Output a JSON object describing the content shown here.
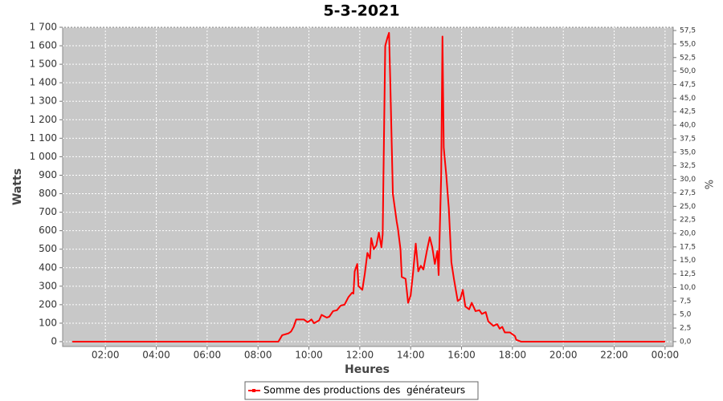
{
  "chart_data": {
    "type": "line",
    "title": "5-3-2021",
    "x_label": "Heures",
    "y_label": "Watts",
    "y2_label": "%",
    "xlim": [
      0.32,
      24.32
    ],
    "xticks": [
      {
        "value": 2,
        "label": "02:00"
      },
      {
        "value": 4,
        "label": "04:00"
      },
      {
        "value": 6,
        "label": "06:00"
      },
      {
        "value": 8,
        "label": "08:00"
      },
      {
        "value": 10,
        "label": "10:00"
      },
      {
        "value": 12,
        "label": "12:00"
      },
      {
        "value": 14,
        "label": "14:00"
      },
      {
        "value": 16,
        "label": "16:00"
      },
      {
        "value": 18,
        "label": "18:00"
      },
      {
        "value": 20,
        "label": "20:00"
      },
      {
        "value": 22,
        "label": "22:00"
      },
      {
        "value": 24,
        "label": "00:00"
      }
    ],
    "ylim": [
      -26,
      1700
    ],
    "yticks": [
      0,
      100,
      200,
      300,
      400,
      500,
      600,
      700,
      800,
      900,
      {
        "value": 1000,
        "label": "1 000"
      },
      {
        "value": 1100,
        "label": "1 100"
      },
      {
        "value": 1200,
        "label": "1 200"
      },
      {
        "value": 1300,
        "label": "1 300"
      },
      {
        "value": 1400,
        "label": "1 400"
      },
      {
        "value": 1500,
        "label": "1 500"
      },
      {
        "value": 1600,
        "label": "1 600"
      },
      {
        "value": 1700,
        "label": "1 700"
      }
    ],
    "y2lim": [
      -0.9,
      58.1
    ],
    "y2ticks": [
      {
        "value": 0,
        "label": "0,0"
      },
      {
        "value": 2.5,
        "label": "2,5"
      },
      {
        "value": 5,
        "label": "5,0"
      },
      {
        "value": 7.5,
        "label": "7,5"
      },
      {
        "value": 10,
        "label": "10,0"
      },
      {
        "value": 12.5,
        "label": "12,5"
      },
      {
        "value": 15,
        "label": "15,0"
      },
      {
        "value": 17.5,
        "label": "17,5"
      },
      {
        "value": 20,
        "label": "20,0"
      },
      {
        "value": 22.5,
        "label": "22,5"
      },
      {
        "value": 25,
        "label": "25,0"
      },
      {
        "value": 27.5,
        "label": "27,5"
      },
      {
        "value": 30,
        "label": "30,0"
      },
      {
        "value": 32.5,
        "label": "32,5"
      },
      {
        "value": 35,
        "label": "35,0"
      },
      {
        "value": 37.5,
        "label": "37,5"
      },
      {
        "value": 40,
        "label": "40,0"
      },
      {
        "value": 42.5,
        "label": "42,5"
      },
      {
        "value": 45,
        "label": "45,0"
      },
      {
        "value": 47.5,
        "label": "47,5"
      },
      {
        "value": 50,
        "label": "50,0"
      },
      {
        "value": 52.5,
        "label": "52,5"
      },
      {
        "value": 55,
        "label": "55,0"
      },
      {
        "value": 57.5,
        "label": "57,5"
      }
    ],
    "grid": true,
    "legend": "bottom",
    "x": [
      0.7,
      8.0,
      8.8,
      8.95,
      9.2,
      9.3,
      9.4,
      9.5,
      9.8,
      9.95,
      10.1,
      10.2,
      10.4,
      10.5,
      10.7,
      10.8,
      10.95,
      11.1,
      11.25,
      11.4,
      11.55,
      11.7,
      11.75,
      11.8,
      11.9,
      11.95,
      12.1,
      12.2,
      12.3,
      12.4,
      12.45,
      12.55,
      12.65,
      12.75,
      12.85,
      12.9,
      13.0,
      13.1,
      13.15,
      13.2,
      13.3,
      13.4,
      13.45,
      13.5,
      13.6,
      13.65,
      13.8,
      13.9,
      14.0,
      14.1,
      14.2,
      14.3,
      14.4,
      14.5,
      14.65,
      14.75,
      14.85,
      14.95,
      15.05,
      15.1,
      15.2,
      15.25,
      15.3,
      15.4,
      15.5,
      15.6,
      15.7,
      15.85,
      15.95,
      16.05,
      16.15,
      16.3,
      16.4,
      16.55,
      16.7,
      16.8,
      16.95,
      17.05,
      17.25,
      17.4,
      17.5,
      17.6,
      17.7,
      17.9,
      18.1,
      18.15,
      18.35,
      24.0
    ],
    "series": [
      {
        "name": "Somme des productions des  générateurs",
        "color": "#ff0000",
        "values": [
          0,
          0,
          0,
          35,
          45,
          55,
          80,
          120,
          120,
          105,
          120,
          100,
          115,
          145,
          130,
          135,
          165,
          170,
          195,
          200,
          240,
          265,
          260,
          380,
          420,
          300,
          280,
          370,
          480,
          450,
          560,
          500,
          520,
          590,
          510,
          580,
          1600,
          1650,
          1670,
          1400,
          800,
          700,
          650,
          610,
          500,
          350,
          340,
          210,
          250,
          380,
          530,
          380,
          410,
          390,
          500,
          565,
          510,
          420,
          490,
          360,
          900,
          1650,
          1050,
          900,
          720,
          430,
          340,
          220,
          230,
          280,
          190,
          175,
          210,
          165,
          170,
          150,
          160,
          110,
          85,
          95,
          70,
          80,
          50,
          50,
          30,
          10,
          0,
          0
        ]
      }
    ]
  }
}
